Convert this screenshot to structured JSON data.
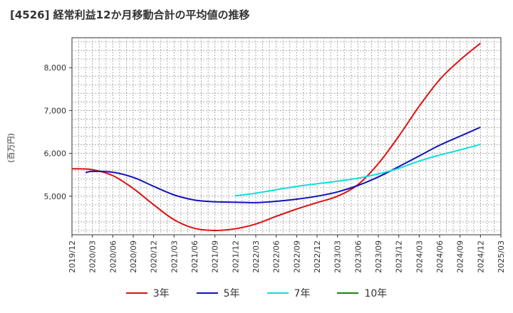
{
  "chart_data": {
    "type": "line",
    "title": "[4526]  経常利益12か月移動合計の平均値の推移",
    "ylabel": "(百万円)",
    "ylim": [
      4100,
      8700
    ],
    "yticks": [
      5000,
      6000,
      7000,
      8000
    ],
    "ytick_labels": [
      "5,000",
      "6,000",
      "7,000",
      "8,000"
    ],
    "xticks": [
      "2019/12",
      "2020/03",
      "2020/06",
      "2020/09",
      "2020/12",
      "2021/03",
      "2021/06",
      "2021/09",
      "2021/12",
      "2022/03",
      "2022/06",
      "2022/09",
      "2022/12",
      "2023/03",
      "2023/06",
      "2023/09",
      "2023/12",
      "2024/03",
      "2024/06",
      "2024/09",
      "2024/12",
      "2025/03"
    ],
    "grid": true,
    "legend_position": "bottom",
    "series": [
      {
        "name": "3年",
        "color": "#dd1111",
        "points": [
          [
            "2019/12",
            5640
          ],
          [
            "2020/03",
            5620
          ],
          [
            "2020/06",
            5480
          ],
          [
            "2020/09",
            5180
          ],
          [
            "2020/12",
            4800
          ],
          [
            "2021/03",
            4450
          ],
          [
            "2021/06",
            4250
          ],
          [
            "2021/09",
            4200
          ],
          [
            "2021/12",
            4240
          ],
          [
            "2022/03",
            4350
          ],
          [
            "2022/06",
            4530
          ],
          [
            "2022/09",
            4700
          ],
          [
            "2022/12",
            4850
          ],
          [
            "2023/03",
            5000
          ],
          [
            "2023/06",
            5270
          ],
          [
            "2023/09",
            5760
          ],
          [
            "2023/12",
            6400
          ],
          [
            "2024/03",
            7100
          ],
          [
            "2024/06",
            7720
          ],
          [
            "2024/09",
            8180
          ],
          [
            "2024/12",
            8570
          ]
        ]
      },
      {
        "name": "5年",
        "color": "#1111bb",
        "points": [
          [
            "2020/02",
            5550
          ],
          [
            "2020/03",
            5580
          ],
          [
            "2020/06",
            5560
          ],
          [
            "2020/09",
            5440
          ],
          [
            "2020/12",
            5230
          ],
          [
            "2021/03",
            5030
          ],
          [
            "2021/06",
            4910
          ],
          [
            "2021/09",
            4870
          ],
          [
            "2021/12",
            4860
          ],
          [
            "2022/03",
            4850
          ],
          [
            "2022/06",
            4880
          ],
          [
            "2022/09",
            4930
          ],
          [
            "2022/12",
            5000
          ],
          [
            "2023/03",
            5100
          ],
          [
            "2023/06",
            5250
          ],
          [
            "2023/09",
            5450
          ],
          [
            "2023/12",
            5690
          ],
          [
            "2024/03",
            5940
          ],
          [
            "2024/06",
            6190
          ],
          [
            "2024/09",
            6400
          ],
          [
            "2024/12",
            6610
          ]
        ]
      },
      {
        "name": "7年",
        "color": "#11dddd",
        "points": [
          [
            "2021/12",
            5010
          ],
          [
            "2022/03",
            5070
          ],
          [
            "2022/06",
            5150
          ],
          [
            "2022/09",
            5230
          ],
          [
            "2022/12",
            5290
          ],
          [
            "2023/03",
            5350
          ],
          [
            "2023/06",
            5420
          ],
          [
            "2023/09",
            5520
          ],
          [
            "2023/12",
            5650
          ],
          [
            "2024/03",
            5820
          ],
          [
            "2024/06",
            5960
          ],
          [
            "2024/09",
            6080
          ],
          [
            "2024/12",
            6210
          ]
        ]
      },
      {
        "name": "10年",
        "color": "#118811",
        "points": []
      }
    ]
  }
}
